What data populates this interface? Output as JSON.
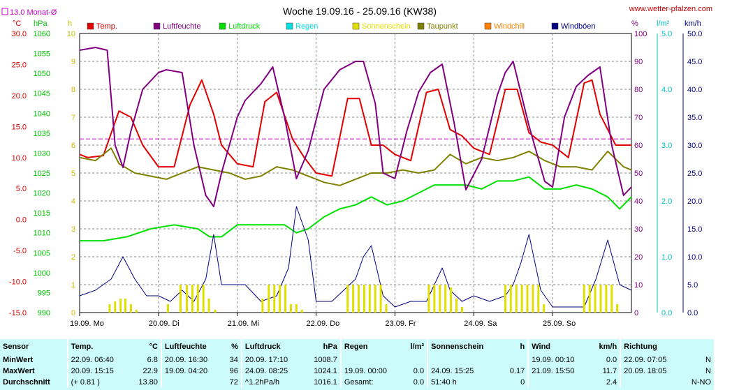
{
  "title": "Woche 19.09.16 - 25.09.16 (KW38)",
  "website": "www.wetter-pfalzen.com",
  "monthly_avg_label": "13.0 Monat-Ø",
  "units": {
    "temp": "°C",
    "pressure": "hPa",
    "hours": "h",
    "percent": "%",
    "rain": "l/m²",
    "wind": "km/h"
  },
  "legend": [
    {
      "label": "Temp.",
      "color": "#e00000"
    },
    {
      "label": "Luftfeuchte",
      "color": "#800080"
    },
    {
      "label": "Luftdruck",
      "color": "#00e000"
    },
    {
      "label": "Regen",
      "color": "#00e0e0"
    },
    {
      "label": "Sonnenschein",
      "color": "#e0e000"
    },
    {
      "label": "Taupunkt",
      "color": "#808000"
    },
    {
      "label": "Windchill",
      "color": "#ff8000"
    },
    {
      "label": "Windböen",
      "color": "#000080"
    }
  ],
  "chart_data": {
    "type": "line",
    "x_labels": [
      "19.09. Mo",
      "20.09. Di",
      "21.09. Mi",
      "22.09. Do",
      "23.09. Fr",
      "24.09. Sa",
      "25.09. So"
    ],
    "axes": {
      "temp": {
        "ticks": [
          "30.0",
          "25.0",
          "20.0",
          "15.0",
          "10.0",
          "5.0",
          "0.0",
          "-5.0",
          "-10.0",
          "-15.0"
        ],
        "range": [
          -15,
          30
        ],
        "color": "#e00000"
      },
      "pressure": {
        "ticks": [
          "1060",
          "1055",
          "1050",
          "1045",
          "1040",
          "1035",
          "1030",
          "1025",
          "1020",
          "1015",
          "1010",
          "1005",
          "1000",
          "995",
          "990"
        ],
        "range": [
          990,
          1060
        ],
        "color": "#00c000"
      },
      "sun_hours": {
        "ticks": [
          "10",
          "9",
          "8",
          "7",
          "6",
          "5",
          "4",
          "3",
          "2",
          "1",
          "0"
        ],
        "range": [
          0,
          10
        ],
        "color": "#c0c000"
      },
      "humidity": {
        "ticks": [
          "100",
          "90",
          "80",
          "70",
          "60",
          "50",
          "40",
          "30",
          "20",
          "10",
          "0"
        ],
        "range": [
          0,
          100
        ],
        "color": "#800080"
      },
      "rain": {
        "ticks": [
          "5.0",
          "4.0",
          "3.0",
          "2.0",
          "1.0",
          "0.0"
        ],
        "range": [
          0,
          5
        ],
        "color": "#00c0c0"
      },
      "wind": {
        "ticks": [
          "50.0",
          "45.0",
          "40.0",
          "35.0",
          "30.0",
          "25.0",
          "20.0",
          "15.0",
          "10.0",
          "5.0",
          "0.0"
        ],
        "range": [
          0,
          50
        ],
        "color": "#000080"
      }
    },
    "monthly_avg_temp": 13.0,
    "series": [
      {
        "name": "Temp.",
        "axis": "temp",
        "color": "#e00000",
        "x": [
          0,
          0.1,
          0.3,
          0.5,
          0.65,
          0.8,
          1.0,
          1.2,
          1.4,
          1.55,
          1.7,
          1.8,
          2.0,
          2.2,
          2.35,
          2.5,
          2.7,
          2.85,
          3.0,
          3.2,
          3.4,
          3.55,
          3.7,
          3.85,
          4.0,
          4.2,
          4.4,
          4.55,
          4.7,
          4.85,
          5.0,
          5.2,
          5.4,
          5.55,
          5.7,
          5.85,
          6.0,
          6.2,
          6.4,
          6.5,
          6.6,
          6.8,
          7.0
        ],
        "y": [
          10.5,
          10.0,
          10.3,
          17.5,
          16.5,
          12.0,
          8.5,
          8.5,
          18.5,
          22.5,
          17.0,
          12.0,
          9.0,
          8.5,
          19.0,
          20.5,
          13.0,
          10.0,
          7.5,
          7.0,
          19.5,
          19.5,
          12.0,
          12.0,
          10.5,
          9.5,
          20.5,
          21.0,
          14.5,
          13.5,
          11.5,
          10.5,
          21.0,
          21.0,
          14.0,
          12.5,
          12.0,
          10.0,
          22.0,
          22.5,
          17.0,
          12.0,
          12.0
        ]
      },
      {
        "name": "Taupunkt",
        "axis": "temp",
        "color": "#808000",
        "x": [
          0,
          0.2,
          0.4,
          0.5,
          0.7,
          0.9,
          1.1,
          1.3,
          1.5,
          1.7,
          1.9,
          2.1,
          2.3,
          2.5,
          2.7,
          2.9,
          3.1,
          3.3,
          3.5,
          3.7,
          3.9,
          4.1,
          4.3,
          4.5,
          4.7,
          4.9,
          5.1,
          5.3,
          5.5,
          5.7,
          5.9,
          6.1,
          6.3,
          6.5,
          6.7,
          6.9,
          7.0
        ],
        "y": [
          10.0,
          9.5,
          11.5,
          9.0,
          7.5,
          7.0,
          6.5,
          7.5,
          8.5,
          8.0,
          7.5,
          6.5,
          7.0,
          8.5,
          8.0,
          7.0,
          6.0,
          5.5,
          6.5,
          7.5,
          7.5,
          8.0,
          7.5,
          8.0,
          10.5,
          9.0,
          10.0,
          9.5,
          10.0,
          11.0,
          9.5,
          8.5,
          8.5,
          8.0,
          11.0,
          8.5,
          8.0
        ]
      },
      {
        "name": "Luftdruck",
        "axis": "pressure",
        "color": "#00e000",
        "x": [
          0,
          0.3,
          0.6,
          0.9,
          1.2,
          1.5,
          1.65,
          1.8,
          2.0,
          2.3,
          2.6,
          2.75,
          2.9,
          3.1,
          3.3,
          3.5,
          3.7,
          3.9,
          4.1,
          4.3,
          4.5,
          4.7,
          4.9,
          5.1,
          5.3,
          5.5,
          5.7,
          5.9,
          6.1,
          6.3,
          6.5,
          6.7,
          6.85,
          7.0
        ],
        "y": [
          1008,
          1008,
          1009,
          1011,
          1012,
          1011,
          1009,
          1009,
          1012,
          1012,
          1012,
          1010,
          1011,
          1014,
          1016,
          1017,
          1019,
          1017,
          1018,
          1020,
          1022,
          1022,
          1022,
          1021,
          1023,
          1023,
          1024,
          1021,
          1021,
          1022,
          1021,
          1019,
          1016,
          1019
        ]
      },
      {
        "name": "Luftfeuchte",
        "axis": "humidity",
        "color": "#800080",
        "x": [
          0,
          0.2,
          0.35,
          0.45,
          0.55,
          0.65,
          0.8,
          1.0,
          1.1,
          1.3,
          1.45,
          1.6,
          1.7,
          1.8,
          2.0,
          2.1,
          2.3,
          2.45,
          2.6,
          2.75,
          2.9,
          3.1,
          3.3,
          3.5,
          3.6,
          3.75,
          3.85,
          4.0,
          4.15,
          4.3,
          4.45,
          4.6,
          4.75,
          4.9,
          5.1,
          5.3,
          5.4,
          5.5,
          5.7,
          5.9,
          6.0,
          6.15,
          6.3,
          6.45,
          6.6,
          6.75,
          6.9,
          7.0
        ],
        "y": [
          94,
          95,
          94,
          60,
          52,
          65,
          80,
          86,
          87,
          86,
          60,
          42,
          38,
          50,
          70,
          76,
          82,
          88,
          70,
          48,
          58,
          80,
          87,
          90,
          90,
          75,
          50,
          48,
          65,
          79,
          86,
          89,
          68,
          44,
          55,
          78,
          86,
          90,
          67,
          47,
          45,
          70,
          81,
          85,
          88,
          60,
          42,
          45
        ]
      },
      {
        "name": "Windböen",
        "axis": "wind",
        "color": "#000080",
        "x": [
          0,
          0.2,
          0.4,
          0.55,
          0.7,
          0.85,
          1.0,
          1.15,
          1.3,
          1.45,
          1.6,
          1.7,
          1.8,
          1.95,
          2.1,
          2.3,
          2.5,
          2.65,
          2.75,
          2.9,
          3.0,
          3.2,
          3.35,
          3.5,
          3.6,
          3.7,
          3.85,
          4.0,
          4.2,
          4.4,
          4.5,
          4.6,
          4.7,
          4.85,
          5.0,
          5.2,
          5.4,
          5.5,
          5.6,
          5.7,
          5.85,
          6.0,
          6.2,
          6.4,
          6.55,
          6.7,
          6.85,
          7.0
        ],
        "y": [
          3,
          4,
          6,
          10,
          6,
          3,
          3,
          2,
          4,
          2,
          6,
          14,
          5,
          5,
          5,
          2,
          3,
          8,
          19,
          13,
          2,
          2,
          4,
          6,
          10,
          12,
          3,
          1,
          2,
          2,
          5,
          8,
          4,
          2,
          3,
          2,
          3,
          5,
          9,
          14,
          4,
          1,
          1,
          1,
          6,
          13,
          5,
          4
        ]
      },
      {
        "name": "Sonnenschein",
        "axis": "sun_hours",
        "color": "#e0e000",
        "x": [
          0.38,
          0.45,
          0.52,
          0.58,
          0.65,
          0.72,
          1.12,
          1.28,
          1.36,
          1.43,
          1.5,
          1.57,
          1.64,
          1.72,
          2.32,
          2.4,
          2.47,
          2.54,
          2.61,
          2.68,
          2.75,
          2.82,
          3.4,
          3.47,
          3.54,
          3.61,
          3.68,
          3.75,
          3.82,
          3.89,
          4.43,
          4.5,
          4.57,
          4.64,
          4.71,
          4.78,
          4.85,
          5.4,
          5.47,
          5.54,
          5.61,
          5.68,
          5.75,
          5.82,
          5.89,
          6.4,
          6.47,
          6.54,
          6.61,
          6.68,
          6.75,
          6.82
        ],
        "y": [
          0.3,
          0.4,
          0.5,
          0.5,
          0.3,
          0.1,
          0.3,
          1.0,
          1.0,
          1.0,
          1.0,
          1.0,
          0.5,
          0.1,
          0.5,
          1.0,
          1.0,
          1.0,
          1.0,
          0.3,
          0.3,
          0.1,
          1.0,
          1.0,
          1.0,
          1.0,
          1.0,
          1.0,
          1.0,
          0.3,
          1.0,
          1.0,
          1.0,
          1.0,
          0.9,
          0.5,
          0.2,
          1.0,
          1.0,
          1.0,
          1.0,
          1.0,
          1.0,
          1.0,
          0.3,
          1.0,
          1.0,
          1.0,
          1.0,
          1.0,
          1.0,
          0.3
        ]
      }
    ]
  },
  "table": {
    "headers": [
      "Sensor",
      "Temp.",
      "°C",
      "Luftfeuchte",
      "%",
      "Luftdruck",
      "hPa",
      "Regen",
      "l/m²",
      "Sonnenschein",
      "h",
      "Wind",
      "km/h",
      "Richtung",
      ""
    ],
    "rows": [
      [
        "MinWert",
        "22.09.  06:40",
        "6.8",
        "20.09.  16:30",
        "34",
        "20.09.  17:10",
        "1008.7",
        "",
        "",
        "",
        "",
        "19.09.  00:10",
        "0.0",
        "22.09.  07:05",
        "N"
      ],
      [
        "MaxWert",
        "20.09.  15:15",
        "22.9",
        "19.09.  04:20",
        "96",
        "24.09.  08:25",
        "1024.1",
        "19.09.  00:00",
        "0.0",
        "24.09.  15:25",
        "0.17",
        "21.09.  15:50",
        "11.7",
        "20.09.  18:05",
        "N"
      ],
      [
        "Durchschnitt",
        "(+ 0.81 )",
        "13.80",
        "",
        "72",
        "^1.2hPa/h",
        "1016.1",
        "Gesamt:",
        "0.0",
        "51:40 h",
        "0",
        "",
        "2.4",
        "",
        "N-NO"
      ]
    ]
  }
}
